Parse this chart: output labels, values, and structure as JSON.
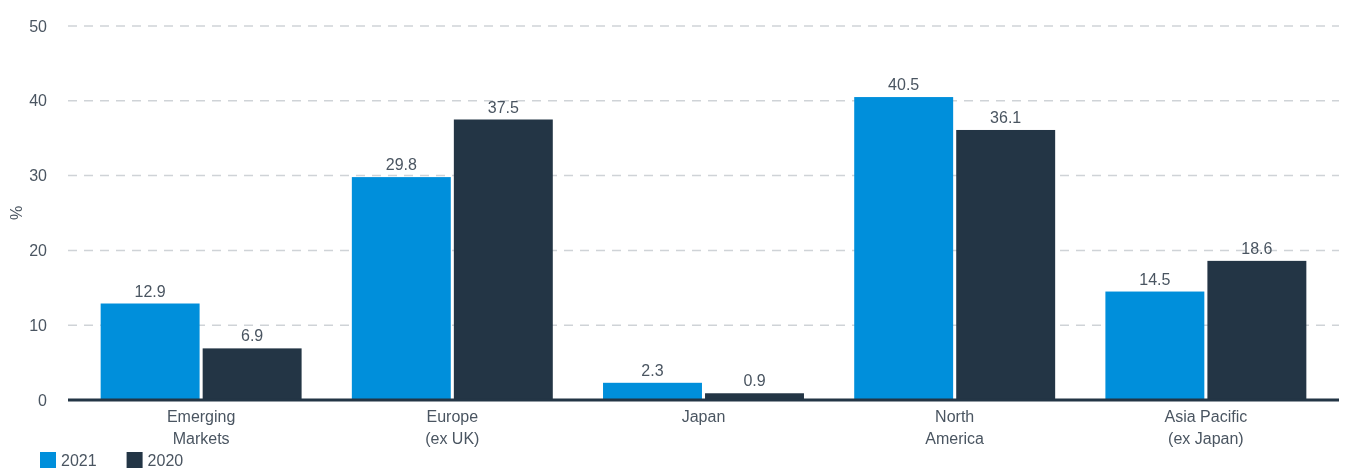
{
  "chart_data": {
    "type": "bar",
    "ylabel": "%",
    "categories": [
      "Emerging\nMarkets",
      "Europe\n(ex UK)",
      "Japan",
      "North\nAmerica",
      "Asia Pacific\n(ex Japan)"
    ],
    "series": [
      {
        "name": "2021",
        "color": "#008fdb",
        "values": [
          12.9,
          29.8,
          2.3,
          40.5,
          14.5
        ]
      },
      {
        "name": "2020",
        "color": "#233545",
        "values": [
          6.9,
          37.5,
          0.9,
          36.1,
          18.6
        ]
      }
    ],
    "ylim": [
      0,
      50
    ],
    "yticks": [
      0,
      10,
      20,
      30,
      40,
      50
    ],
    "grid": "y",
    "data_labels": true,
    "legend": "bottom left"
  }
}
